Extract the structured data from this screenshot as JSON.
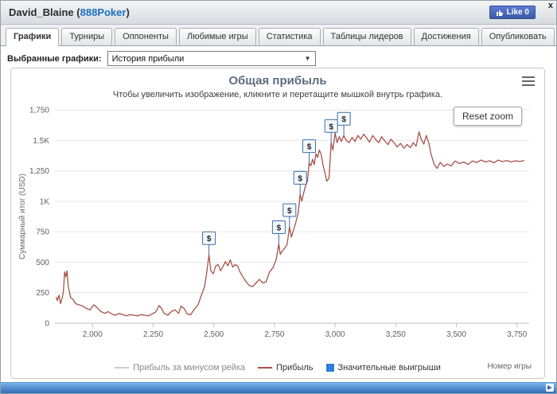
{
  "header": {
    "player": "David_Blaine",
    "open_paren": "(",
    "room": "888Poker",
    "close_paren": ")",
    "like_label": "Like 0",
    "close_label": "x"
  },
  "tabs": [
    {
      "label": "Графики",
      "active": true
    },
    {
      "label": "Турниры",
      "active": false
    },
    {
      "label": "Оппоненты",
      "active": false
    },
    {
      "label": "Любимые игры",
      "active": false
    },
    {
      "label": "Статистика",
      "active": false
    },
    {
      "label": "Таблицы лидеров",
      "active": false
    },
    {
      "label": "Достижения",
      "active": false
    },
    {
      "label": "Опубликовать",
      "active": false
    }
  ],
  "filter": {
    "label": "Выбранные графики:",
    "selected": "История прибыли"
  },
  "chart_data": {
    "type": "line",
    "title": "Общая прибыль",
    "subtitle": "Чтобы увеличить изображение, кликните и перетащите мышкой внутрь графика.",
    "ylabel": "Суммарный итог (USD)",
    "xlabel": "Номер игры",
    "reset_zoom_label": "Reset zoom",
    "xlim": [
      1845,
      3800
    ],
    "ylim": [
      0,
      1750
    ],
    "yticks": [
      0,
      250,
      500,
      750,
      1000,
      1250,
      1500,
      1750
    ],
    "ytick_labels": [
      "0",
      "250",
      "500",
      "750",
      "1K",
      "1,250",
      "1.5K",
      "1,750"
    ],
    "xticks": [
      2000,
      2250,
      2500,
      2750,
      3000,
      3250,
      3500,
      3750
    ],
    "xtick_labels": [
      "2,000",
      "2,250",
      "2,500",
      "2,750",
      "3,000",
      "3,250",
      "3,500",
      "3,750"
    ],
    "grid_color": "#e6e6e6",
    "axis_color": "#c0c0c0",
    "legend": [
      {
        "label": "Прибыль за минусом рейка",
        "type": "line",
        "color": "#cccccc"
      },
      {
        "label": "Прибыль",
        "type": "line",
        "color": "#a8524b"
      },
      {
        "label": "Значительные выигрыши",
        "type": "square",
        "color": "#2f7ed8"
      }
    ],
    "series": [
      {
        "name": "Прибыль",
        "color": "#a8524b",
        "points": [
          [
            1850,
            215
          ],
          [
            1855,
            185
          ],
          [
            1862,
            230
          ],
          [
            1868,
            160
          ],
          [
            1875,
            205
          ],
          [
            1880,
            260
          ],
          [
            1885,
            420
          ],
          [
            1890,
            380
          ],
          [
            1895,
            430
          ],
          [
            1900,
            300
          ],
          [
            1910,
            210
          ],
          [
            1920,
            195
          ],
          [
            1930,
            160
          ],
          [
            1945,
            150
          ],
          [
            1960,
            140
          ],
          [
            1975,
            120
          ],
          [
            1990,
            110
          ],
          [
            2005,
            150
          ],
          [
            2020,
            125
          ],
          [
            2035,
            95
          ],
          [
            2050,
            80
          ],
          [
            2065,
            95
          ],
          [
            2080,
            75
          ],
          [
            2095,
            65
          ],
          [
            2110,
            80
          ],
          [
            2125,
            70
          ],
          [
            2140,
            60
          ],
          [
            2155,
            70
          ],
          [
            2170,
            65
          ],
          [
            2185,
            60
          ],
          [
            2200,
            70
          ],
          [
            2215,
            65
          ],
          [
            2230,
            60
          ],
          [
            2245,
            75
          ],
          [
            2260,
            90
          ],
          [
            2275,
            145
          ],
          [
            2285,
            120
          ],
          [
            2295,
            80
          ],
          [
            2310,
            65
          ],
          [
            2325,
            95
          ],
          [
            2340,
            110
          ],
          [
            2355,
            80
          ],
          [
            2365,
            140
          ],
          [
            2380,
            115
          ],
          [
            2390,
            75
          ],
          [
            2405,
            70
          ],
          [
            2420,
            115
          ],
          [
            2435,
            150
          ],
          [
            2450,
            235
          ],
          [
            2462,
            300
          ],
          [
            2472,
            430
          ],
          [
            2480,
            560
          ],
          [
            2488,
            430
          ],
          [
            2498,
            405
          ],
          [
            2508,
            470
          ],
          [
            2518,
            480
          ],
          [
            2528,
            430
          ],
          [
            2538,
            465
          ],
          [
            2548,
            505
          ],
          [
            2558,
            470
          ],
          [
            2568,
            520
          ],
          [
            2578,
            460
          ],
          [
            2588,
            480
          ],
          [
            2598,
            470
          ],
          [
            2608,
            420
          ],
          [
            2620,
            380
          ],
          [
            2633,
            340
          ],
          [
            2646,
            310
          ],
          [
            2660,
            300
          ],
          [
            2674,
            330
          ],
          [
            2688,
            360
          ],
          [
            2702,
            330
          ],
          [
            2716,
            340
          ],
          [
            2730,
            420
          ],
          [
            2744,
            455
          ],
          [
            2757,
            520
          ],
          [
            2768,
            650
          ],
          [
            2774,
            565
          ],
          [
            2782,
            590
          ],
          [
            2792,
            615
          ],
          [
            2802,
            645
          ],
          [
            2812,
            790
          ],
          [
            2820,
            705
          ],
          [
            2828,
            760
          ],
          [
            2838,
            825
          ],
          [
            2848,
            905
          ],
          [
            2856,
            1055
          ],
          [
            2863,
            1000
          ],
          [
            2870,
            1065
          ],
          [
            2878,
            1125
          ],
          [
            2886,
            1165
          ],
          [
            2893,
            1315
          ],
          [
            2900,
            1290
          ],
          [
            2907,
            1345
          ],
          [
            2914,
            1300
          ],
          [
            2921,
            1390
          ],
          [
            2928,
            1360
          ],
          [
            2935,
            1420
          ],
          [
            2942,
            1390
          ],
          [
            2950,
            1300
          ],
          [
            2958,
            1235
          ],
          [
            2966,
            1165
          ],
          [
            2975,
            1190
          ],
          [
            2984,
            1480
          ],
          [
            2991,
            1420
          ],
          [
            3000,
            1560
          ],
          [
            3008,
            1480
          ],
          [
            3017,
            1530
          ],
          [
            3026,
            1490
          ],
          [
            3036,
            1540
          ],
          [
            3046,
            1500
          ],
          [
            3058,
            1480
          ],
          [
            3070,
            1525
          ],
          [
            3082,
            1490
          ],
          [
            3094,
            1540
          ],
          [
            3106,
            1510
          ],
          [
            3118,
            1550
          ],
          [
            3130,
            1520
          ],
          [
            3142,
            1485
          ],
          [
            3155,
            1540
          ],
          [
            3168,
            1505
          ],
          [
            3180,
            1480
          ],
          [
            3192,
            1530
          ],
          [
            3205,
            1495
          ],
          [
            3218,
            1465
          ],
          [
            3230,
            1510
          ],
          [
            3243,
            1480
          ],
          [
            3256,
            1445
          ],
          [
            3270,
            1475
          ],
          [
            3284,
            1435
          ],
          [
            3297,
            1465
          ],
          [
            3310,
            1440
          ],
          [
            3322,
            1480
          ],
          [
            3334,
            1450
          ],
          [
            3346,
            1570
          ],
          [
            3356,
            1505
          ],
          [
            3366,
            1470
          ],
          [
            3376,
            1540
          ],
          [
            3386,
            1480
          ],
          [
            3396,
            1385
          ],
          [
            3408,
            1305
          ],
          [
            3420,
            1270
          ],
          [
            3434,
            1320
          ],
          [
            3448,
            1285
          ],
          [
            3462,
            1305
          ],
          [
            3478,
            1290
          ],
          [
            3495,
            1330
          ],
          [
            3512,
            1310
          ],
          [
            3530,
            1322
          ],
          [
            3548,
            1302
          ],
          [
            3566,
            1330
          ],
          [
            3584,
            1318
          ],
          [
            3602,
            1338
          ],
          [
            3620,
            1322
          ],
          [
            3638,
            1332
          ],
          [
            3655,
            1315
          ],
          [
            3672,
            1338
          ],
          [
            3690,
            1325
          ],
          [
            3708,
            1335
          ],
          [
            3726,
            1322
          ],
          [
            3744,
            1332
          ],
          [
            3762,
            1326
          ],
          [
            3780,
            1335
          ]
        ]
      }
    ],
    "markers": {
      "symbol": "$",
      "border_color": "#3c6fa5",
      "fill_color": "#f4f9ff",
      "points": [
        [
          2480,
          560
        ],
        [
          2768,
          650
        ],
        [
          2812,
          790
        ],
        [
          2856,
          1055
        ],
        [
          2893,
          1315
        ],
        [
          2984,
          1480
        ],
        [
          3036,
          1540
        ]
      ]
    }
  }
}
